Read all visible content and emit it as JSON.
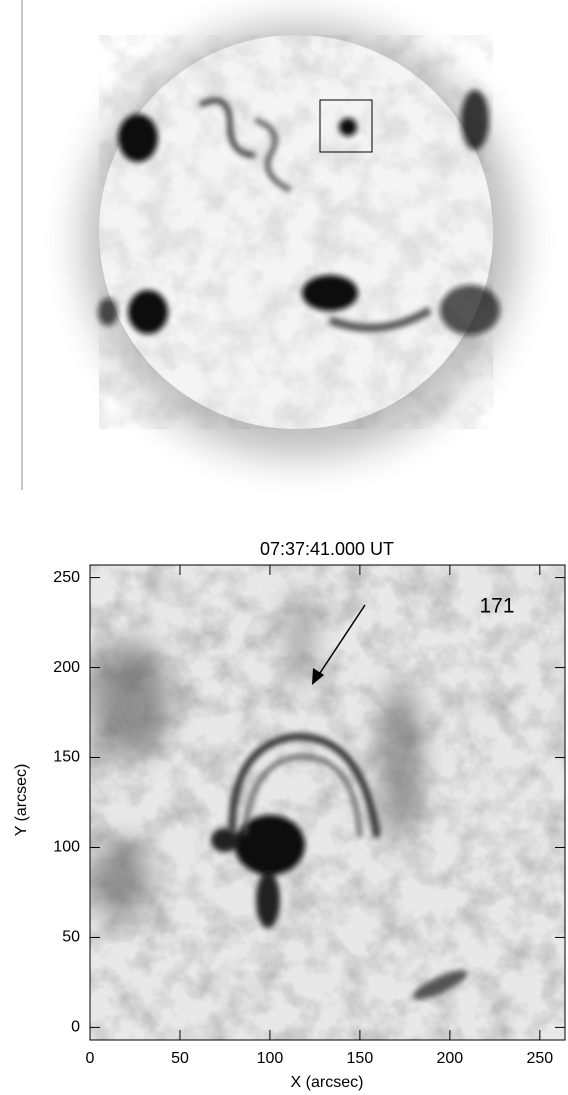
{
  "chart_data": {
    "type": "image",
    "title": "07:37:41.000 UT",
    "annotation": "171",
    "xlabel": "X (arcsec)",
    "ylabel": "Y (arcsec)",
    "xlim": [
      0,
      264
    ],
    "ylim": [
      -7,
      257
    ],
    "xticks": [
      0,
      50,
      100,
      150,
      200,
      250
    ],
    "yticks": [
      0,
      50,
      100,
      150,
      200,
      250
    ]
  }
}
